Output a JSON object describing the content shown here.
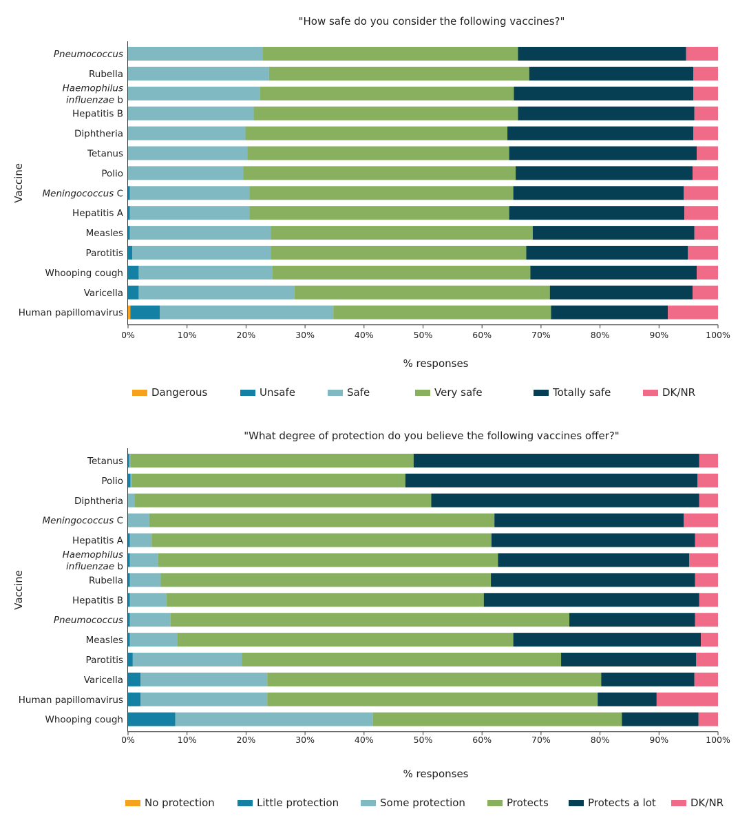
{
  "colors": {
    "Dangerous": "#f6a21d",
    "Unsafe": "#1380a4",
    "Safe": "#80b9c2",
    "Very safe": "#89b05e",
    "Totally safe": "#063f54",
    "DK/NR": "#ef6b87",
    "axis": "#333333"
  },
  "chart_data": [
    {
      "type": "bar",
      "orientation": "horizontal",
      "stacked": true,
      "title": "\"How safe do you consider the following vaccines?\"",
      "xlabel": "% responses",
      "ylabel": "Vaccine",
      "xlim": [
        0,
        100
      ],
      "xticks": [
        "0%",
        "10%",
        "20%",
        "30%",
        "40%",
        "50%",
        "60%",
        "70%",
        "80%",
        "90%",
        "100%"
      ],
      "legend_position": "bottom",
      "categories": [
        {
          "label": [
            "Pneumococcus"
          ],
          "italic": [
            true
          ]
        },
        {
          "label": [
            "Rubella"
          ],
          "italic": [
            false
          ]
        },
        {
          "label": [
            "Haemophilus",
            "influenzae b"
          ],
          "italic": [
            true,
            "partial"
          ]
        },
        {
          "label": [
            "Hepatitis B"
          ],
          "italic": [
            false
          ]
        },
        {
          "label": [
            "Diphtheria"
          ],
          "italic": [
            false
          ]
        },
        {
          "label": [
            "Tetanus"
          ],
          "italic": [
            false
          ]
        },
        {
          "label": [
            "Polio"
          ],
          "italic": [
            false
          ]
        },
        {
          "label": [
            "Meningococcus C"
          ],
          "italic": [
            "partial"
          ]
        },
        {
          "label": [
            "Hepatitis A"
          ],
          "italic": [
            false
          ]
        },
        {
          "label": [
            "Measles"
          ],
          "italic": [
            false
          ]
        },
        {
          "label": [
            "Parotitis"
          ],
          "italic": [
            false
          ]
        },
        {
          "label": [
            "Whooping cough"
          ],
          "italic": [
            false
          ]
        },
        {
          "label": [
            "Varicella"
          ],
          "italic": [
            false
          ]
        },
        {
          "label": [
            "Human papillomavirus"
          ],
          "italic": [
            false
          ]
        }
      ],
      "series": [
        {
          "name": "Dangerous",
          "values": [
            0,
            0,
            0,
            0,
            0,
            0,
            0,
            0,
            0,
            0,
            0,
            0,
            0,
            0.4
          ]
        },
        {
          "name": "Unsafe",
          "values": [
            0,
            0,
            0,
            0,
            0,
            0,
            0,
            0.3,
            0.3,
            0.3,
            0.7,
            1.8,
            1.8,
            5.0
          ]
        },
        {
          "name": "Safe",
          "values": [
            22.8,
            23.9,
            22.4,
            21.3,
            19.9,
            20.2,
            19.5,
            20.3,
            20.3,
            23.9,
            23.5,
            22.7,
            26.4,
            29.4
          ]
        },
        {
          "name": "Very safe",
          "values": [
            43.3,
            44.1,
            43.0,
            44.8,
            44.4,
            44.4,
            46.2,
            44.7,
            44.0,
            44.4,
            43.3,
            43.7,
            43.3,
            36.9
          ]
        },
        {
          "name": "Totally safe",
          "values": [
            28.5,
            27.8,
            30.4,
            29.9,
            31.5,
            31.8,
            30.0,
            28.9,
            29.7,
            27.4,
            27.4,
            28.2,
            24.2,
            19.8
          ]
        },
        {
          "name": "DK/NR",
          "values": [
            5.4,
            4.2,
            4.2,
            4.0,
            4.2,
            3.6,
            4.3,
            5.8,
            5.7,
            4.0,
            5.1,
            3.6,
            4.3,
            8.5
          ]
        }
      ]
    },
    {
      "type": "bar",
      "orientation": "horizontal",
      "stacked": true,
      "title": "\"What degree of protection do you believe the following vaccines offer?\"",
      "xlabel": "% responses",
      "ylabel": "Vaccine",
      "xlim": [
        0,
        100
      ],
      "xticks": [
        "0%",
        "10%",
        "20%",
        "30%",
        "40%",
        "50%",
        "60%",
        "70%",
        "80%",
        "90%",
        "100%"
      ],
      "legend_position": "bottom",
      "categories": [
        {
          "label": [
            "Tetanus"
          ],
          "italic": [
            false
          ]
        },
        {
          "label": [
            "Polio"
          ],
          "italic": [
            false
          ]
        },
        {
          "label": [
            "Diphtheria"
          ],
          "italic": [
            false
          ]
        },
        {
          "label": [
            "Meningococcus C"
          ],
          "italic": [
            "partial"
          ]
        },
        {
          "label": [
            "Hepatitis A"
          ],
          "italic": [
            false
          ]
        },
        {
          "label": [
            "Haemophilus",
            "influenzae b"
          ],
          "italic": [
            true,
            "partial"
          ]
        },
        {
          "label": [
            "Rubella"
          ],
          "italic": [
            false
          ]
        },
        {
          "label": [
            "Hepatitis B"
          ],
          "italic": [
            false
          ]
        },
        {
          "label": [
            "Pneumococcus"
          ],
          "italic": [
            true
          ]
        },
        {
          "label": [
            "Measles"
          ],
          "italic": [
            false
          ]
        },
        {
          "label": [
            "Parotitis"
          ],
          "italic": [
            false
          ]
        },
        {
          "label": [
            "Varicella"
          ],
          "italic": [
            false
          ]
        },
        {
          "label": [
            "Human papillomavirus"
          ],
          "italic": [
            false
          ]
        },
        {
          "label": [
            "Whooping cough"
          ],
          "italic": [
            false
          ]
        }
      ],
      "series": [
        {
          "name": "No protection",
          "values": [
            0,
            0,
            0,
            0,
            0,
            0,
            0,
            0,
            0,
            0,
            0,
            0,
            0,
            0
          ]
        },
        {
          "name": "Little protection",
          "values": [
            0.2,
            0.4,
            0,
            0,
            0.3,
            0.3,
            0.3,
            0.3,
            0.3,
            0.3,
            0.8,
            2.1,
            2.1,
            8.0
          ]
        },
        {
          "name": "Some protection",
          "values": [
            0.2,
            0.3,
            1.1,
            3.6,
            3.7,
            4.8,
            5.2,
            6.2,
            6.9,
            8.1,
            18.5,
            21.5,
            21.5,
            33.5
          ]
        },
        {
          "name": "Protects",
          "values": [
            48.0,
            46.3,
            50.3,
            58.5,
            57.6,
            57.6,
            56.0,
            53.8,
            67.6,
            56.9,
            54.1,
            56.6,
            56.0,
            42.2
          ]
        },
        {
          "name": "Protects a lot",
          "values": [
            48.4,
            49.5,
            45.4,
            32.1,
            34.5,
            32.4,
            34.6,
            36.5,
            21.3,
            31.8,
            22.9,
            15.8,
            10.0,
            13.0
          ]
        },
        {
          "name": "DK/NR",
          "values": [
            3.2,
            3.5,
            3.2,
            5.8,
            3.9,
            4.9,
            3.9,
            3.2,
            3.9,
            2.9,
            3.7,
            4.0,
            10.4,
            3.3
          ]
        }
      ]
    }
  ]
}
